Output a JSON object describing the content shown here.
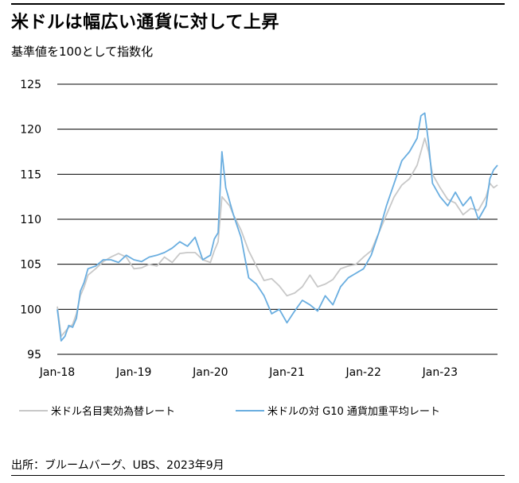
{
  "header": {
    "title": "米ドルは幅広い通貨に対して上昇",
    "subtitle": "基準値を100として指数化"
  },
  "legend": {
    "series1": "米ドル名目実効為替レート",
    "series2": "米ドルの対 G10 通貨加重平均レート"
  },
  "footer": {
    "source": "出所：ブルームバーグ、UBS、2023年9月"
  },
  "colors": {
    "series1": "#c8c8c8",
    "series2": "#6aaee0",
    "grid": "#000000"
  },
  "chart_data": {
    "type": "line",
    "ylim": [
      95,
      125
    ],
    "yticks": [
      "95",
      "100",
      "105",
      "110",
      "115",
      "120",
      "125"
    ],
    "xticks": [
      "Jan-18",
      "Jan-19",
      "Jan-20",
      "Jan-21",
      "Jan-22",
      "Jan-23"
    ],
    "xrange": [
      2018.0,
      2023.75
    ],
    "grid": true,
    "legend_position": "bottom",
    "series": [
      {
        "name": "米ドル名目実効為替レート",
        "x": [
          2018.0,
          2018.05,
          2018.1,
          2018.15,
          2018.2,
          2018.25,
          2018.3,
          2018.35,
          2018.4,
          2018.5,
          2018.6,
          2018.7,
          2018.8,
          2018.9,
          2019.0,
          2019.1,
          2019.2,
          2019.3,
          2019.4,
          2019.5,
          2019.6,
          2019.7,
          2019.8,
          2019.9,
          2020.0,
          2020.05,
          2020.1,
          2020.15,
          2020.2,
          2020.25,
          2020.3,
          2020.4,
          2020.5,
          2020.6,
          2020.7,
          2020.8,
          2020.9,
          2021.0,
          2021.1,
          2021.2,
          2021.3,
          2021.4,
          2021.5,
          2021.6,
          2021.7,
          2021.8,
          2021.9,
          2022.0,
          2022.1,
          2022.2,
          2022.3,
          2022.4,
          2022.5,
          2022.6,
          2022.7,
          2022.75,
          2022.8,
          2022.85,
          2022.9,
          2023.0,
          2023.1,
          2023.2,
          2023.3,
          2023.4,
          2023.5,
          2023.6,
          2023.65,
          2023.7,
          2023.75
        ],
        "y": [
          100.3,
          97.0,
          97.5,
          98.0,
          98.3,
          99.5,
          101.5,
          102.5,
          103.8,
          104.5,
          105.3,
          105.8,
          106.2,
          105.8,
          104.5,
          104.6,
          105.0,
          104.8,
          105.8,
          105.2,
          106.2,
          106.3,
          106.3,
          105.5,
          105.2,
          106.5,
          107.5,
          112.5,
          112.0,
          111.5,
          110.5,
          108.8,
          106.5,
          104.8,
          103.2,
          103.4,
          102.6,
          101.5,
          101.8,
          102.5,
          103.8,
          102.5,
          102.8,
          103.3,
          104.5,
          104.8,
          105.0,
          105.8,
          106.5,
          108.5,
          110.5,
          112.5,
          113.8,
          114.5,
          116.0,
          117.5,
          119.0,
          117.5,
          115.0,
          113.5,
          112.2,
          111.8,
          110.5,
          111.2,
          111.0,
          112.5,
          114.0,
          113.5,
          113.8
        ]
      },
      {
        "name": "米ドルの対 G10 通貨加重平均レート",
        "x": [
          2018.0,
          2018.05,
          2018.1,
          2018.15,
          2018.2,
          2018.25,
          2018.3,
          2018.35,
          2018.4,
          2018.5,
          2018.6,
          2018.7,
          2018.8,
          2018.9,
          2019.0,
          2019.1,
          2019.2,
          2019.3,
          2019.4,
          2019.5,
          2019.6,
          2019.7,
          2019.8,
          2019.9,
          2020.0,
          2020.05,
          2020.1,
          2020.15,
          2020.2,
          2020.25,
          2020.3,
          2020.4,
          2020.5,
          2020.6,
          2020.7,
          2020.8,
          2020.9,
          2021.0,
          2021.1,
          2021.2,
          2021.3,
          2021.4,
          2021.5,
          2021.6,
          2021.7,
          2021.8,
          2021.9,
          2022.0,
          2022.1,
          2022.2,
          2022.3,
          2022.4,
          2022.5,
          2022.6,
          2022.7,
          2022.75,
          2022.8,
          2022.85,
          2022.9,
          2023.0,
          2023.1,
          2023.2,
          2023.3,
          2023.4,
          2023.5,
          2023.6,
          2023.65,
          2023.7,
          2023.75
        ],
        "y": [
          100.0,
          96.5,
          97.0,
          98.2,
          98.0,
          99.0,
          102.0,
          103.0,
          104.5,
          104.8,
          105.5,
          105.5,
          105.2,
          106.0,
          105.5,
          105.3,
          105.8,
          106.0,
          106.3,
          106.8,
          107.5,
          107.0,
          108.0,
          105.5,
          106.0,
          107.8,
          108.5,
          117.5,
          113.5,
          112.0,
          110.5,
          108.0,
          103.5,
          102.8,
          101.5,
          99.5,
          100.0,
          98.5,
          99.8,
          101.0,
          100.5,
          99.8,
          101.5,
          100.5,
          102.5,
          103.5,
          104.0,
          104.5,
          106.0,
          108.5,
          111.5,
          114.0,
          116.5,
          117.5,
          119.0,
          121.5,
          121.8,
          118.5,
          114.0,
          112.5,
          111.5,
          113.0,
          111.5,
          112.5,
          110.0,
          111.5,
          114.5,
          115.5,
          116.0
        ]
      }
    ]
  }
}
